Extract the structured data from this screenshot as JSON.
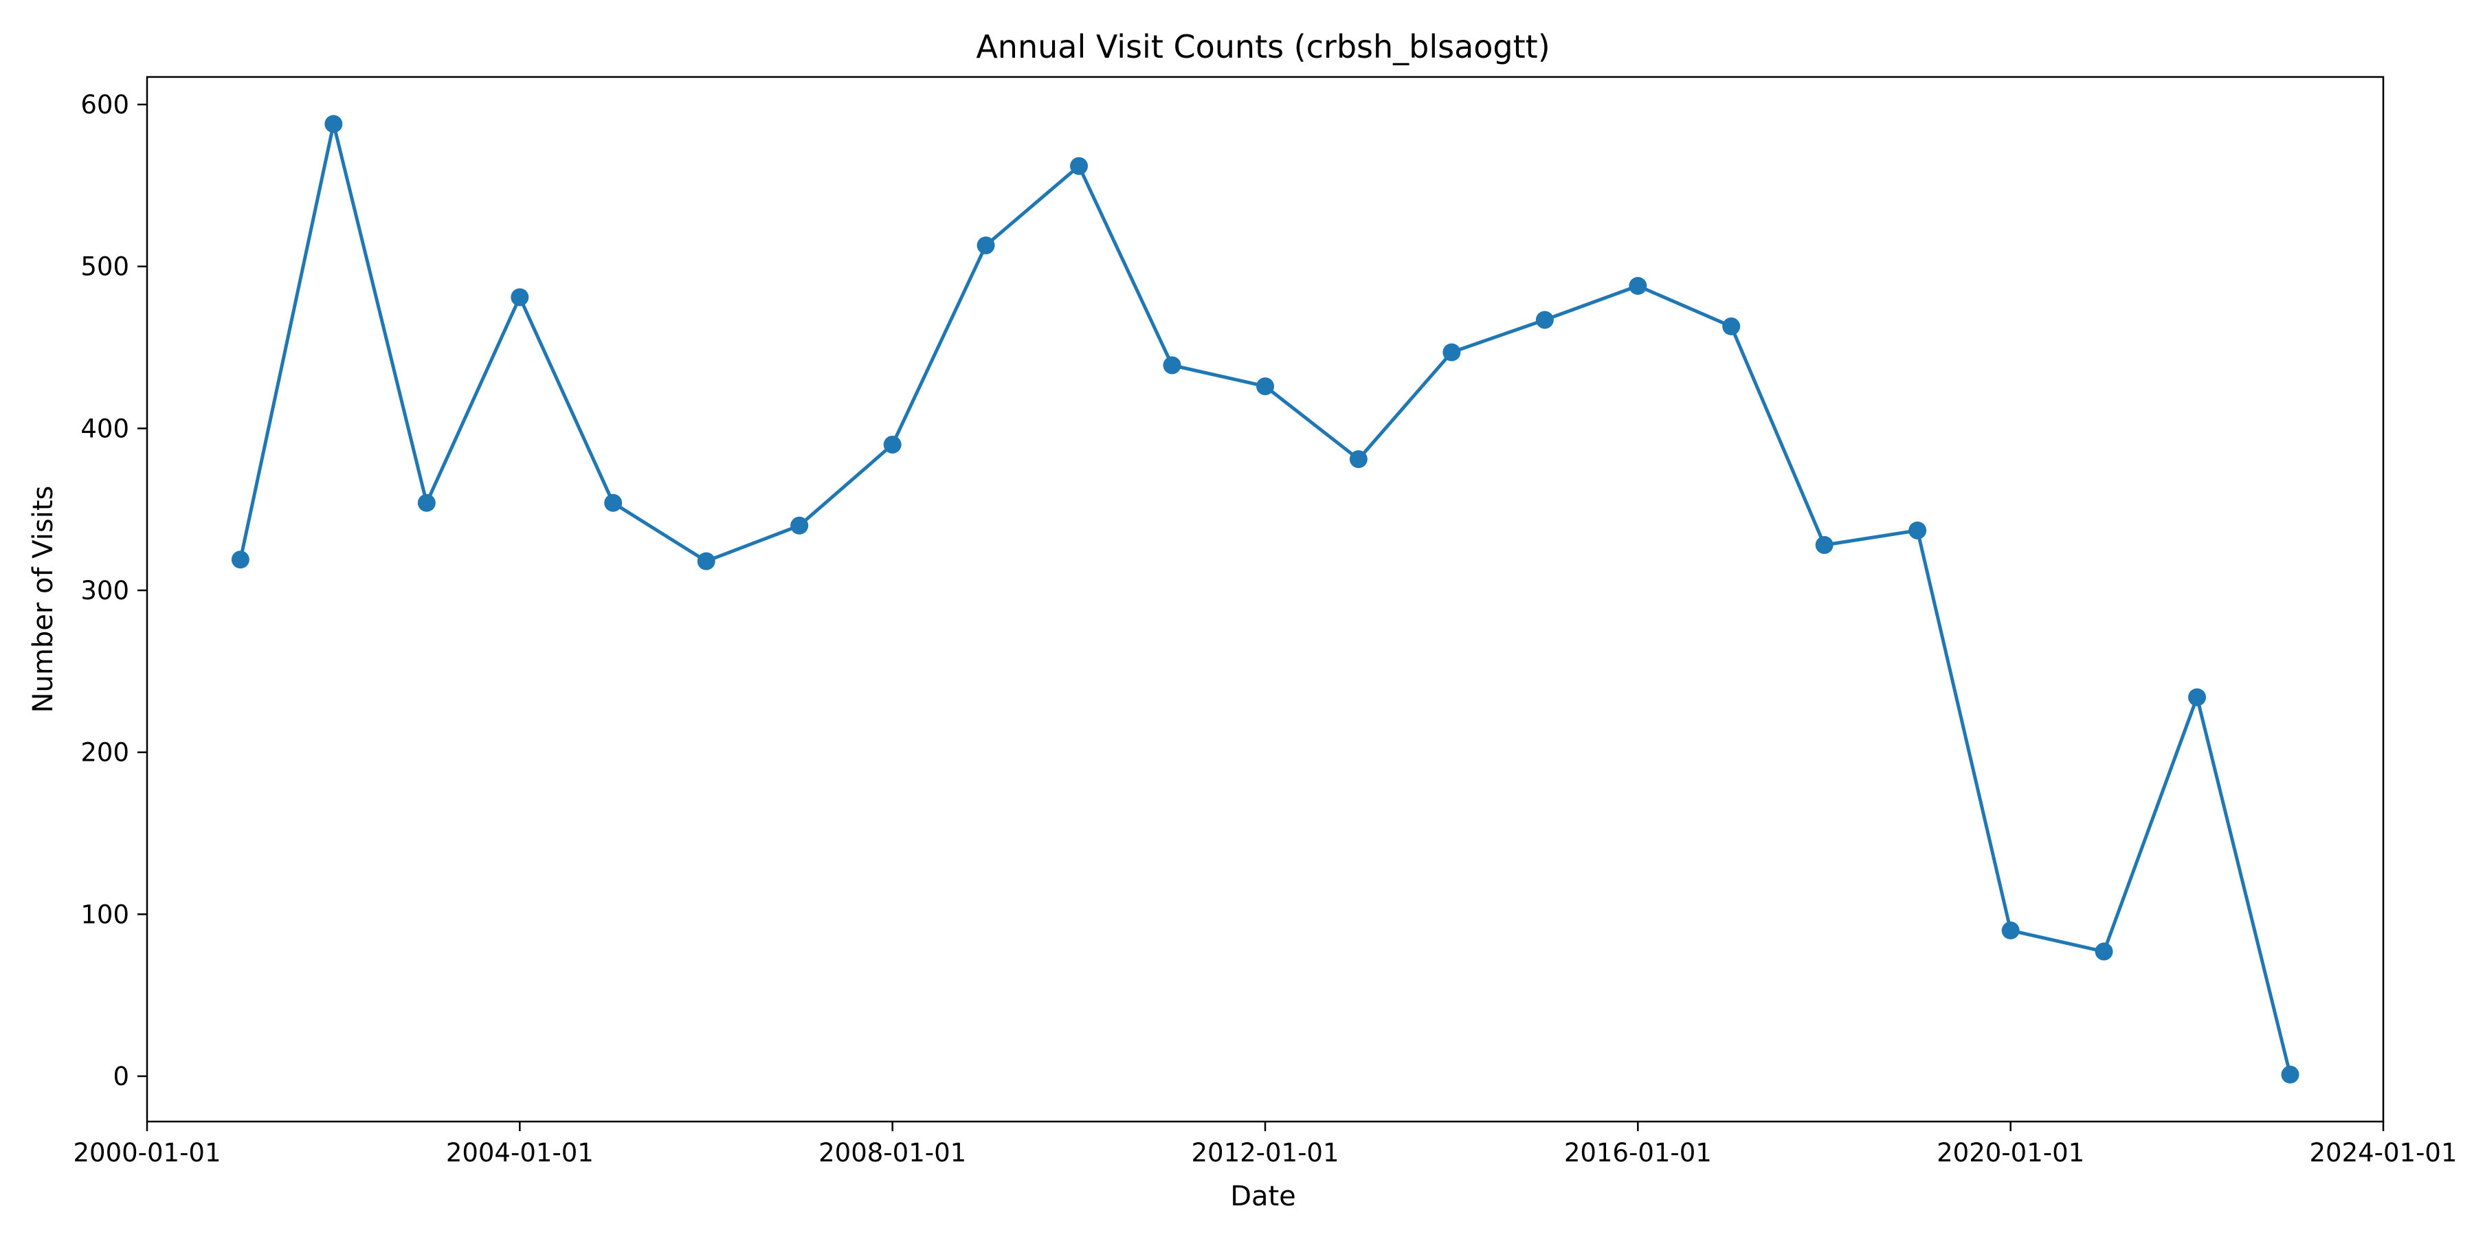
{
  "chart_data": {
    "type": "line",
    "title": "Annual Visit Counts (crbsh_blsaogtt)",
    "xlabel": "Date",
    "ylabel": "Number of Visits",
    "x_axis_type": "date",
    "xlim": [
      "2000-01-01",
      "2024-01-01"
    ],
    "ylim": [
      -28,
      617
    ],
    "x_ticks": [
      "2000-01-01",
      "2004-01-01",
      "2008-01-01",
      "2012-01-01",
      "2016-01-01",
      "2020-01-01",
      "2024-01-01"
    ],
    "y_ticks": [
      0,
      100,
      200,
      300,
      400,
      500,
      600
    ],
    "grid": false,
    "legend": "none",
    "series": [
      {
        "color": "#1f77b4",
        "marker": "circle",
        "x": [
          "2001-01-01",
          "2002-01-01",
          "2003-01-01",
          "2004-01-01",
          "2005-01-01",
          "2006-01-01",
          "2007-01-01",
          "2008-01-01",
          "2009-01-01",
          "2010-01-01",
          "2011-01-01",
          "2012-01-01",
          "2013-01-01",
          "2014-01-01",
          "2015-01-01",
          "2016-01-01",
          "2017-01-01",
          "2018-01-01",
          "2019-01-01",
          "2020-01-01",
          "2021-01-01",
          "2022-01-01",
          "2023-01-01"
        ],
        "y": [
          319,
          588,
          354,
          481,
          354,
          318,
          340,
          390,
          513,
          562,
          439,
          426,
          381,
          447,
          467,
          488,
          463,
          328,
          337,
          90,
          77,
          234,
          1
        ]
      }
    ]
  }
}
